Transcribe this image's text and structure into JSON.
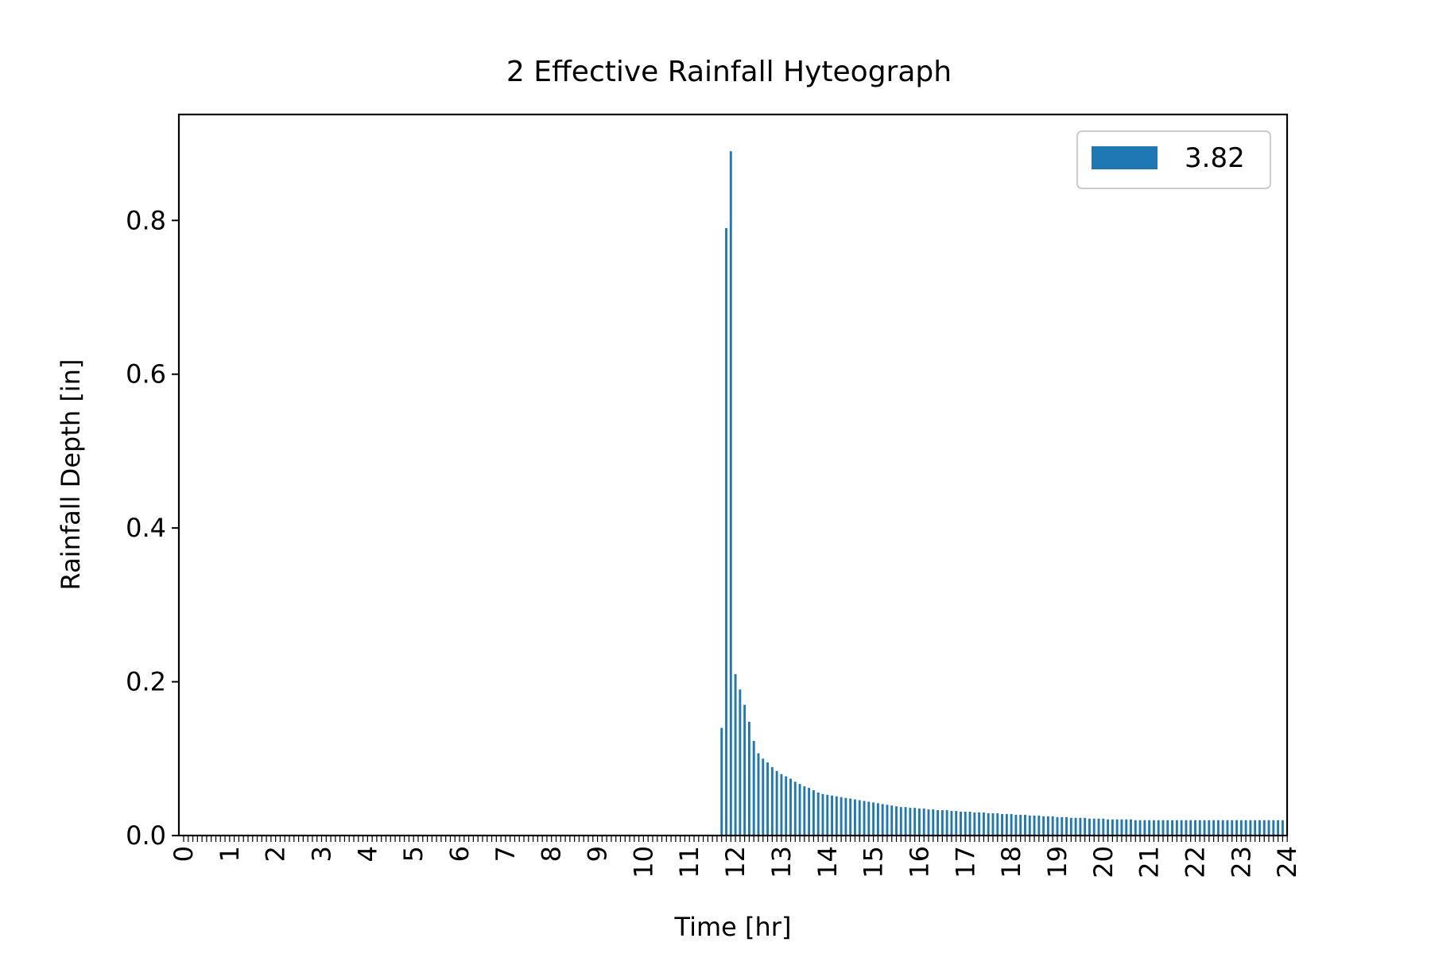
{
  "chart_data": {
    "type": "bar",
    "title": "2 Effective Rainfall Hyteograph",
    "xlabel": "Time [hr]",
    "ylabel": "Rainfall Depth [in]",
    "ylim": [
      0,
      0.9378
    ],
    "yticks": [
      "0.0",
      "0.2",
      "0.4",
      "0.6",
      "0.8"
    ],
    "x_tick_labels": [
      "0",
      "1",
      "2",
      "3",
      "4",
      "5",
      "6",
      "7",
      "8",
      "9",
      "10",
      "11",
      "12",
      "13",
      "14",
      "15",
      "16",
      "17",
      "18",
      "19",
      "20",
      "21",
      "22",
      "23",
      "24"
    ],
    "bar_interval_hr": 0.1,
    "legend": {
      "placement": "top-right",
      "entries": [
        "3.82"
      ]
    },
    "colors": {
      "series": "#1f77b4",
      "axes": "#000000"
    },
    "grid": false,
    "series": [
      {
        "name": "3.82",
        "x": [
          11.7,
          11.8,
          11.9,
          12.0,
          12.1,
          12.2,
          12.3,
          12.4,
          12.5,
          12.6,
          12.7,
          12.8,
          12.9,
          13.0,
          13.1,
          13.2,
          13.3,
          13.4,
          13.5,
          13.6,
          13.7,
          13.8,
          13.9,
          14.0,
          14.1,
          14.2,
          14.3,
          14.4,
          14.5,
          14.6,
          14.7,
          14.8,
          14.9,
          15.0,
          15.1,
          15.2,
          15.3,
          15.4,
          15.5,
          15.6,
          15.7,
          15.8,
          15.9,
          16.0,
          16.1,
          16.2,
          16.3,
          16.4,
          16.5,
          16.6,
          16.7,
          16.8,
          16.9,
          17.0,
          17.1,
          17.2,
          17.3,
          17.4,
          17.5,
          17.6,
          17.7,
          17.8,
          17.9,
          18.0,
          18.1,
          18.2,
          18.3,
          18.4,
          18.5,
          18.6,
          18.7,
          18.8,
          18.9,
          19.0,
          19.1,
          19.2,
          19.3,
          19.4,
          19.5,
          19.6,
          19.7,
          19.8,
          19.9,
          20.0,
          20.1,
          20.2,
          20.3,
          20.4,
          20.5,
          20.6,
          20.7,
          20.8,
          20.9,
          21.0,
          21.1,
          21.2,
          21.3,
          21.4,
          21.5,
          21.6,
          21.7,
          21.8,
          21.9,
          22.0,
          22.1,
          22.2,
          22.3,
          22.4,
          22.5,
          22.6,
          22.7,
          22.8,
          22.9,
          23.0,
          23.1,
          23.2,
          23.3,
          23.4,
          23.5,
          23.6,
          23.7,
          23.8,
          23.9
        ],
        "values": [
          0.14,
          0.79,
          0.89,
          0.21,
          0.19,
          0.17,
          0.148,
          0.123,
          0.107,
          0.1,
          0.095,
          0.089,
          0.084,
          0.08,
          0.077,
          0.074,
          0.07,
          0.067,
          0.064,
          0.062,
          0.059,
          0.056,
          0.054,
          0.053,
          0.052,
          0.051,
          0.05,
          0.049,
          0.048,
          0.047,
          0.046,
          0.045,
          0.044,
          0.043,
          0.042,
          0.041,
          0.04,
          0.039,
          0.038,
          0.037,
          0.037,
          0.036,
          0.036,
          0.035,
          0.035,
          0.034,
          0.034,
          0.033,
          0.033,
          0.033,
          0.032,
          0.032,
          0.031,
          0.031,
          0.031,
          0.03,
          0.03,
          0.03,
          0.029,
          0.029,
          0.029,
          0.028,
          0.028,
          0.028,
          0.027,
          0.027,
          0.027,
          0.026,
          0.026,
          0.026,
          0.025,
          0.025,
          0.025,
          0.024,
          0.024,
          0.024,
          0.023,
          0.023,
          0.023,
          0.023,
          0.022,
          0.022,
          0.022,
          0.022,
          0.021,
          0.021,
          0.021,
          0.021,
          0.021,
          0.021,
          0.02,
          0.02,
          0.02,
          0.02,
          0.02,
          0.02,
          0.02,
          0.02,
          0.02,
          0.02,
          0.02,
          0.02,
          0.02,
          0.02,
          0.02,
          0.02,
          0.02,
          0.02,
          0.02,
          0.02,
          0.02,
          0.02,
          0.02,
          0.02,
          0.02,
          0.02,
          0.02,
          0.02,
          0.02,
          0.02,
          0.02,
          0.02,
          0.02
        ]
      }
    ]
  }
}
